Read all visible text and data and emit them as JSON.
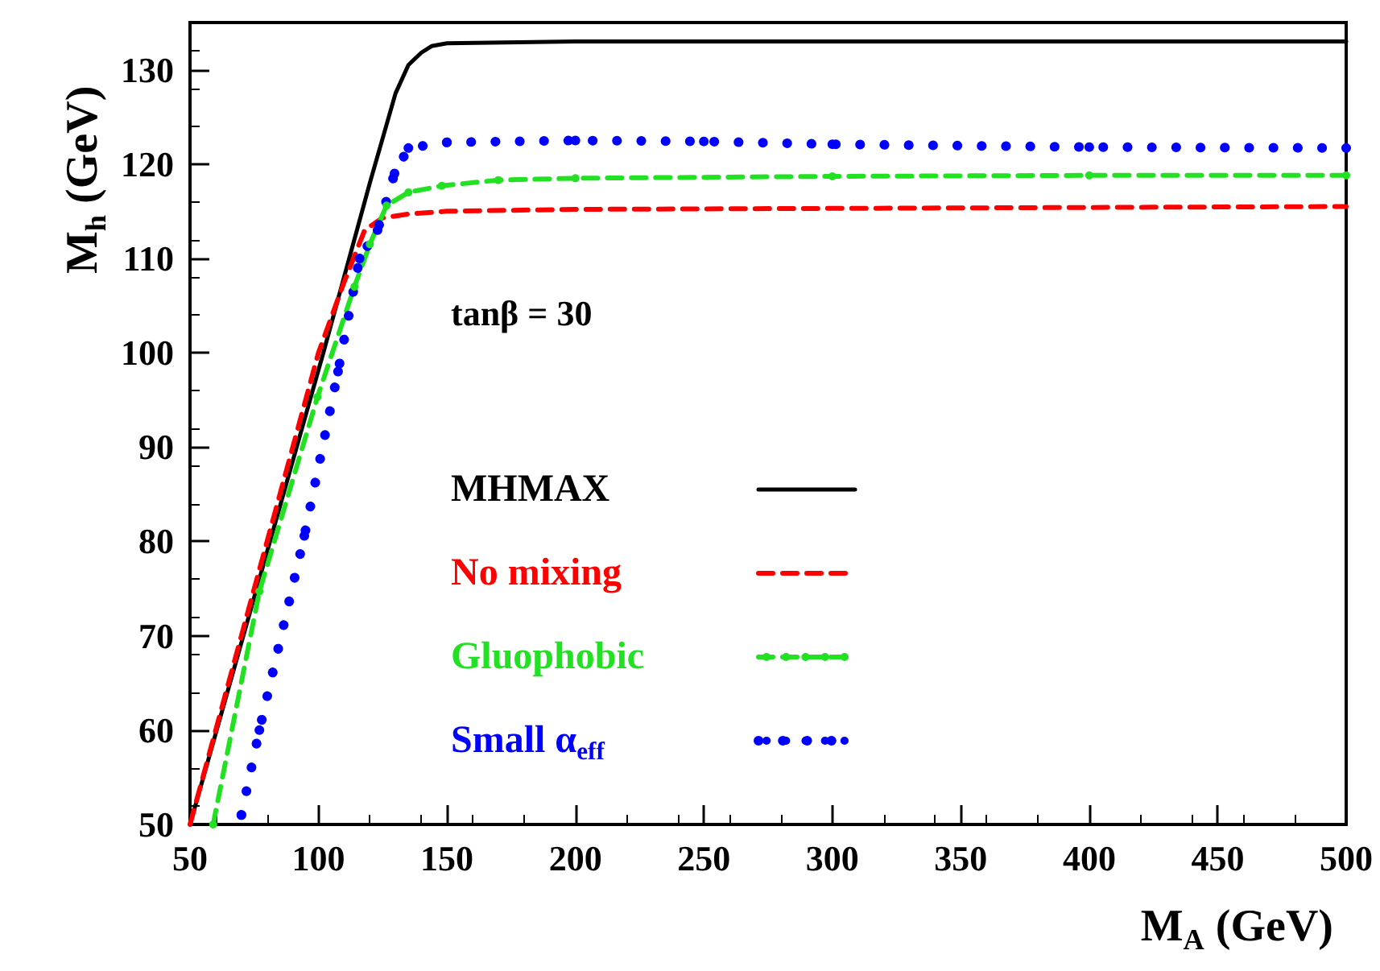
{
  "chart_data": {
    "type": "line",
    "xlabel": "M$_{A}$ (GeV)",
    "ylabel": "M$_{h}$ (GeV)",
    "annotations": [
      "tanβ = 30"
    ],
    "xlim": [
      50,
      500
    ],
    "xticks": [
      50,
      100,
      150,
      200,
      250,
      300,
      350,
      400,
      450,
      500
    ],
    "ylim": [
      50,
      135
    ],
    "yticks": [
      50,
      60,
      70,
      80,
      90,
      100,
      110,
      120,
      130
    ],
    "grid": false,
    "legend": "center",
    "series": [
      {
        "name": "MHMAX",
        "color": "#000000",
        "line_style": "solid",
        "marker": "none",
        "x": [
          50,
          102,
          120,
          130,
          135,
          140,
          144,
          150,
          200,
          300,
          500
        ],
        "values": [
          50,
          100.1,
          118,
          127.5,
          130.5,
          131.8,
          132.5,
          132.8,
          133,
          133,
          133
        ]
      },
      {
        "name": "No mixing",
        "color": "#ff0000",
        "line_style": "dashed",
        "marker": "none",
        "x": [
          50,
          100,
          110,
          118,
          125,
          135,
          150,
          200,
          300,
          500
        ],
        "values": [
          50,
          100,
          107.5,
          113,
          114.3,
          114.7,
          115,
          115.2,
          115.3,
          115.5
        ]
      },
      {
        "name": "Gluophobic",
        "color": "#22e022",
        "line_style": "dashed",
        "marker": "circle",
        "x": [
          59,
          77,
          99.6,
          114,
          120,
          126.5,
          135,
          148,
          170,
          200,
          300,
          400,
          500
        ],
        "values": [
          50,
          74.7,
          95.3,
          107,
          111.5,
          115.6,
          117,
          117.7,
          118.3,
          118.5,
          118.7,
          118.8,
          118.8
        ]
      },
      {
        "name": "Small α$_{eff}$",
        "color": "#0000ff",
        "line_style": "dotted",
        "marker": "circle",
        "x": [
          70,
          77,
          94.5,
          107.6,
          116,
          123,
          129.6,
          135,
          150,
          200,
          250,
          300,
          400,
          500
        ],
        "values": [
          51,
          60,
          80.6,
          98,
          110,
          113,
          119,
          121.7,
          122.3,
          122.5,
          122.4,
          122.1,
          121.8,
          121.7
        ]
      }
    ]
  }
}
